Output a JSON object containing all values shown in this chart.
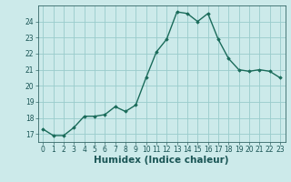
{
  "x": [
    0,
    1,
    2,
    3,
    4,
    5,
    6,
    7,
    8,
    9,
    10,
    11,
    12,
    13,
    14,
    15,
    16,
    17,
    18,
    19,
    20,
    21,
    22,
    23
  ],
  "y": [
    17.3,
    16.9,
    16.9,
    17.4,
    18.1,
    18.1,
    18.2,
    18.7,
    18.4,
    18.8,
    20.5,
    22.1,
    22.9,
    24.6,
    24.5,
    24.0,
    24.5,
    22.9,
    21.7,
    21.0,
    20.9,
    21.0,
    20.9,
    20.5
  ],
  "line_color": "#1a6b5a",
  "marker": "D",
  "marker_size": 1.8,
  "line_width": 1.0,
  "bg_color": "#cceaea",
  "grid_color": "#99cccc",
  "xlabel": "Humidex (Indice chaleur)",
  "ylabel": "",
  "xlim": [
    -0.5,
    23.5
  ],
  "ylim": [
    16.5,
    25.0
  ],
  "yticks": [
    17,
    18,
    19,
    20,
    21,
    22,
    23,
    24
  ],
  "xticks": [
    0,
    1,
    2,
    3,
    4,
    5,
    6,
    7,
    8,
    9,
    10,
    11,
    12,
    13,
    14,
    15,
    16,
    17,
    18,
    19,
    20,
    21,
    22,
    23
  ],
  "tick_fontsize": 5.5,
  "xlabel_fontsize": 7.5,
  "xlabel_fontweight": "bold"
}
